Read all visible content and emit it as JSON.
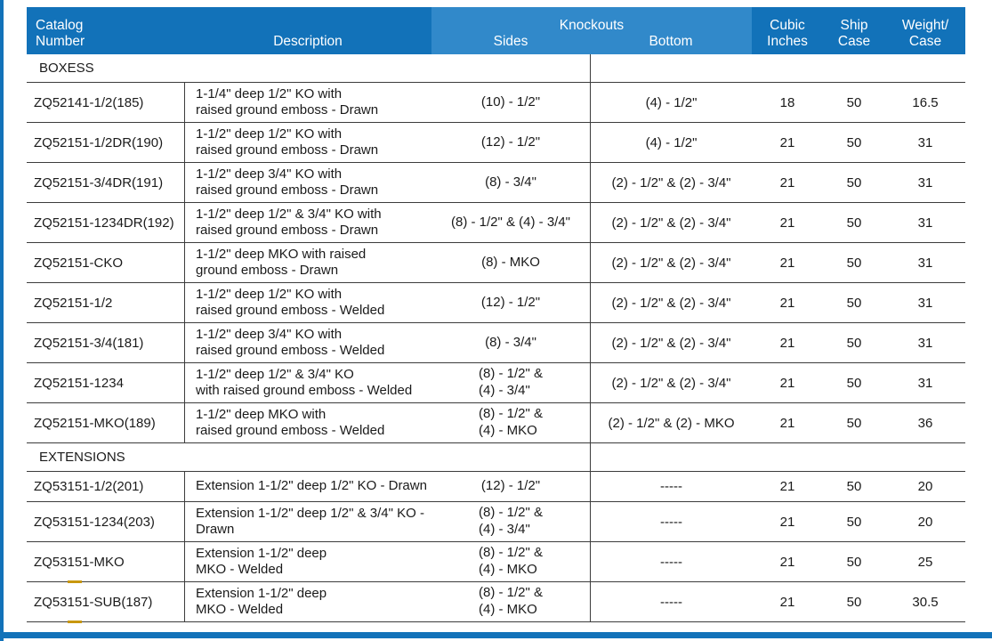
{
  "colors": {
    "header_blue": "#1272B9",
    "knockouts_blue": "#3189CA",
    "accent_dash": "#C8970E",
    "line": "#3c3c3c"
  },
  "header": {
    "catalog": "Catalog\nNumber",
    "description": "Description",
    "knockouts": "Knockouts",
    "sides": "Sides",
    "bottom": "Bottom",
    "cubic": "Cubic\nInches",
    "ship": "Ship\nCase",
    "weight": "Weight/\nCase"
  },
  "sections": [
    {
      "label": "BOXESS",
      "rows": [
        {
          "catalog": "ZQ52141-1/2(185)",
          "description": "1-1/4\" deep 1/2\" KO with\nraised ground emboss - Drawn",
          "sides": "(10) - 1/2\"",
          "bottom": "(4) - 1/2\"",
          "cubic": "18",
          "ship": "50",
          "weight": "16.5"
        },
        {
          "catalog": "ZQ52151-1/2DR(190)",
          "description": "1-1/2\" deep 1/2\" KO with\nraised ground emboss - Drawn",
          "sides": "(12) - 1/2\"",
          "bottom": "(4) - 1/2\"",
          "cubic": "21",
          "ship": "50",
          "weight": "31"
        },
        {
          "catalog": "ZQ52151-3/4DR(191)",
          "description": "1-1/2\" deep 3/4\" KO with\nraised ground emboss - Drawn",
          "sides": "(8) - 3/4\"",
          "bottom": "(2) - 1/2\" & (2) - 3/4\"",
          "cubic": "21",
          "ship": "50",
          "weight": "31"
        },
        {
          "catalog": "ZQ52151-1234DR(192)",
          "description": "1-1/2\" deep 1/2\" & 3/4\" KO with\nraised ground emboss - Drawn",
          "sides": "(8) - 1/2\" & (4) - 3/4\"",
          "bottom": "(2) - 1/2\" & (2) - 3/4\"",
          "cubic": "21",
          "ship": "50",
          "weight": "31"
        },
        {
          "catalog": "ZQ52151-CKO",
          "description": "1-1/2\" deep MKO with raised\nground emboss - Drawn",
          "sides": "(8) - MKO",
          "bottom": "(2) - 1/2\" & (2) - 3/4\"",
          "cubic": "21",
          "ship": "50",
          "weight": "31"
        },
        {
          "catalog": "ZQ52151-1/2",
          "description": "1-1/2\" deep 1/2\" KO with\nraised ground emboss - Welded",
          "sides": "(12) - 1/2\"",
          "bottom": "(2) - 1/2\" & (2) - 3/4\"",
          "cubic": "21",
          "ship": "50",
          "weight": "31"
        },
        {
          "catalog": "ZQ52151-3/4(181)",
          "description": "1-1/2\" deep 3/4\" KO with\nraised ground emboss - Welded",
          "sides": "(8) - 3/4\"",
          "bottom": "(2) - 1/2\" & (2) - 3/4\"",
          "cubic": "21",
          "ship": "50",
          "weight": "31"
        },
        {
          "catalog": "ZQ52151-1234",
          "description": "1-1/2\" deep 1/2\" & 3/4\"  KO\nwith raised ground emboss - Welded",
          "sides": "(8) - 1/2\" &\n(4) - 3/4\"",
          "bottom": "(2) - 1/2\" & (2) - 3/4\"",
          "cubic": "21",
          "ship": "50",
          "weight": "31"
        },
        {
          "catalog": "ZQ52151-MKO(189)",
          "description": "1-1/2\" deep MKO with\nraised ground emboss - Welded",
          "sides": "(8) - 1/2\" &\n(4) - MKO",
          "bottom": "(2) - 1/2\" & (2) - MKO",
          "cubic": "21",
          "ship": "50",
          "weight": "36"
        }
      ]
    },
    {
      "label": "EXTENSIONS",
      "rows": [
        {
          "catalog": "ZQ53151-1/2(201)",
          "description": "Extension 1-1/2\" deep 1/2\" KO - Drawn",
          "sides": "(12) - 1/2\"",
          "bottom": "-----",
          "cubic": "21",
          "ship": "50",
          "weight": "20"
        },
        {
          "catalog": "ZQ53151-1234(203)",
          "description": "Extension 1-1/2\" deep 1/2\" & 3/4\" KO - Drawn",
          "sides": "(8) - 1/2\" &\n(4) - 3/4\"",
          "bottom": "-----",
          "cubic": "21",
          "ship": "50",
          "weight": "20"
        },
        {
          "catalog": "ZQ53151-MKO",
          "description": "Extension 1-1/2\" deep\nMKO - Welded",
          "sides": "(8) - 1/2\" &\n(4) - MKO",
          "bottom": "-----",
          "cubic": "21",
          "ship": "50",
          "weight": "25",
          "accent_underline": true
        },
        {
          "catalog": "ZQ53151-SUB(187)",
          "description": "Extension 1-1/2\" deep\nMKO - Welded",
          "sides": "(8) - 1/2\" &\n(4) - MKO",
          "bottom": "-----",
          "cubic": "21",
          "ship": "50",
          "weight": "30.5",
          "accent_underline": true
        }
      ]
    }
  ]
}
